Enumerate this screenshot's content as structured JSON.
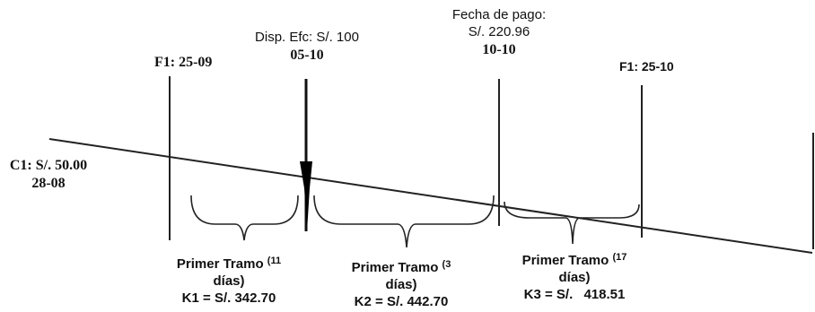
{
  "markers": {
    "c1": {
      "amount": "C1: S/. 50.00",
      "date": "28-08"
    },
    "f1_sep": {
      "label": "F1: 25-09"
    },
    "disp": {
      "label": "Disp. Efc: S/. 100",
      "date": "05-10"
    },
    "payment": {
      "title": "Fecha de pago:",
      "amount": "S/. 220.96",
      "date": "10-10"
    },
    "f1_oct": {
      "label": "F1: 25-10"
    }
  },
  "tramos": [
    {
      "label": "Primer Tramo",
      "days_num": "(11",
      "days_word": "días)",
      "k": "K1 = S/. 342.70"
    },
    {
      "label": "Primer Tramo",
      "days_num": "(3",
      "days_word": "días)",
      "k": "K2 = S/. 442.70"
    },
    {
      "label": "Primer Tramo",
      "days_num": "(17",
      "days_word": "días)",
      "k_prefix": "K3 = S/.",
      "k_value": "418.51"
    }
  ],
  "colors": {
    "ink": "#111111",
    "background": "#ffffff"
  }
}
